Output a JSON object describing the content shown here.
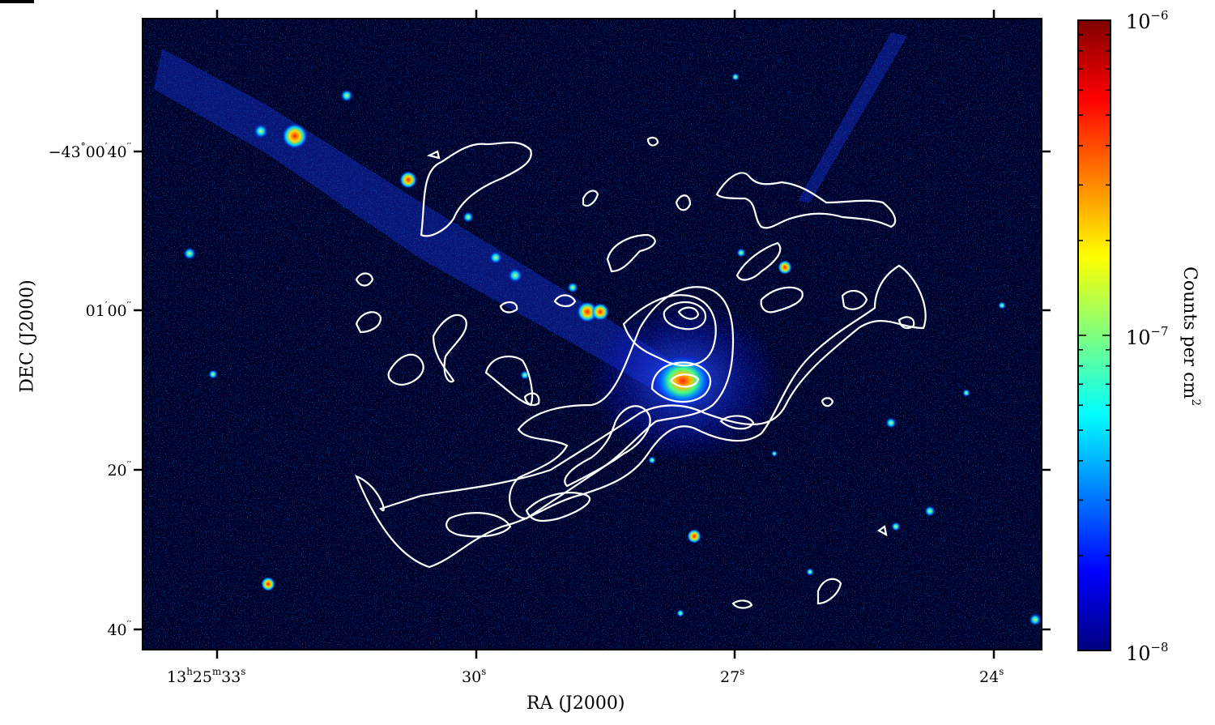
{
  "figure": {
    "x_axis": {
      "title": "RA (J2000)",
      "ticks": [
        {
          "main": "13",
          "sup1": "h",
          "m": "25",
          "sup2": "m",
          "s": "33",
          "sup3": "s"
        },
        {
          "main": "30",
          "sup": "s"
        },
        {
          "main": "27",
          "sup": "s"
        },
        {
          "main": "24",
          "sup": "s"
        }
      ]
    },
    "y_axis": {
      "title": "DEC (J2000)",
      "ticks": [
        {
          "deg": "−43",
          "degsym": "°",
          "min": "00",
          "minsym": "′",
          "sec": "40",
          "secsym": "′′"
        },
        {
          "min": "01",
          "minsym": "′",
          "sec": "00",
          "secsym": "′′"
        },
        {
          "sec": "20",
          "secsym": "′′"
        },
        {
          "sec": "40",
          "secsym": "′′"
        }
      ]
    },
    "colorbar": {
      "title_text": "Counts per cm",
      "title_sup": "2",
      "scale": "log",
      "range": [
        1e-08,
        1e-06
      ],
      "tick_labels": [
        {
          "base": "10",
          "exp": "−6"
        },
        {
          "base": "10",
          "exp": "−7"
        },
        {
          "base": "10",
          "exp": "−8"
        }
      ],
      "colormap": [
        "#00007f",
        "#0000ff",
        "#007fff",
        "#00ffff",
        "#7fff7f",
        "#ffff00",
        "#ff7f00",
        "#ff0000",
        "#7f0000"
      ]
    },
    "image": {
      "background_color": "#00002a",
      "contour_color": "#ffffff"
    }
  }
}
